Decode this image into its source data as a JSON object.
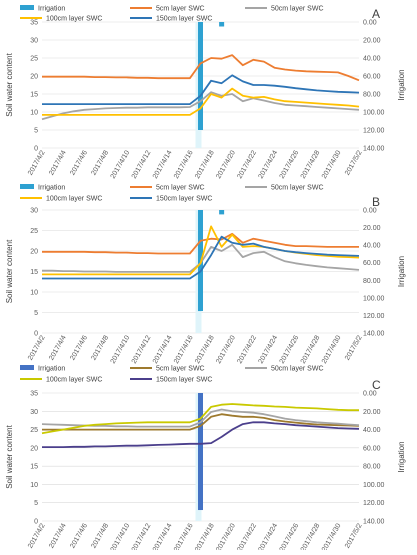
{
  "chart_data": [
    {
      "type": "line",
      "panel_label": "A",
      "ylabel": "Soil water content",
      "y2label": "Irrigation",
      "ylim": [
        0,
        35
      ],
      "y2lim": [
        0,
        140
      ],
      "y2_inverted": true,
      "yticks": [
        "0",
        "5",
        "10",
        "15",
        "20",
        "25",
        "30",
        "35"
      ],
      "y2ticks": [
        "0.00",
        "20.00",
        "40.00",
        "60.00",
        "80.00",
        "100.00",
        "120.00",
        "140.00"
      ],
      "x_dates": [
        "2017/4/2",
        "2017/4/3",
        "2017/4/4",
        "2017/4/5",
        "2017/4/6",
        "2017/4/7",
        "2017/4/8",
        "2017/4/9",
        "2017/4/10",
        "2017/4/11",
        "2017/4/12",
        "2017/4/13",
        "2017/4/14",
        "2017/4/15",
        "2017/4/16",
        "2017/4/17",
        "2017/4/18",
        "2017/4/19",
        "2017/4/20",
        "2017/4/21",
        "2017/4/22",
        "2017/4/23",
        "2017/4/24",
        "2017/4/25",
        "2017/4/26",
        "2017/4/27",
        "2017/4/28",
        "2017/4/29",
        "2017/4/30",
        "2017/5/1",
        "2017/5/2"
      ],
      "x_tick_labels": [
        "2017/4/2",
        "2017/4/4",
        "2017/4/6",
        "2017/4/8",
        "2017/4/10",
        "2017/4/12",
        "2017/4/14",
        "2017/4/16",
        "2017/4/18",
        "2017/4/20",
        "2017/4/22",
        "2017/4/24",
        "2017/4/26",
        "2017/4/28",
        "2017/4/30",
        "2017/5/2"
      ],
      "legend": [
        "Irrigation",
        "5cm layer SWC",
        "50cm layer SWC",
        "100cm layer SWC",
        "150cm layer SWC"
      ],
      "irrigation": [
        {
          "date": "2017/4/17",
          "value": 120
        },
        {
          "date": "2017/4/19",
          "value": 5
        }
      ],
      "series": [
        {
          "name": "5cm layer SWC",
          "color": "#ED7D31",
          "values": [
            19.8,
            19.8,
            19.8,
            19.8,
            19.8,
            19.7,
            19.7,
            19.6,
            19.6,
            19.5,
            19.5,
            19.4,
            19.4,
            19.4,
            19.4,
            23.5,
            25.0,
            24.8,
            25.8,
            23.0,
            24.5,
            24.0,
            22.3,
            21.8,
            21.5,
            21.3,
            21.2,
            21.1,
            21.0,
            20.0,
            18.8
          ]
        },
        {
          "name": "50cm layer SWC",
          "color": "#A5A5A5",
          "values": [
            8.0,
            8.8,
            9.6,
            10.2,
            10.6,
            10.8,
            11.0,
            11.1,
            11.2,
            11.2,
            11.3,
            11.3,
            11.3,
            11.3,
            11.4,
            13.0,
            15.5,
            14.5,
            15.0,
            13.0,
            13.8,
            13.2,
            12.5,
            12.0,
            11.8,
            11.6,
            11.4,
            11.2,
            11.0,
            10.8,
            10.6
          ]
        },
        {
          "name": "100cm layer SWC",
          "color": "#FFC000",
          "values": [
            9.2,
            9.2,
            9.2,
            9.2,
            9.2,
            9.2,
            9.2,
            9.2,
            9.2,
            9.2,
            9.2,
            9.2,
            9.2,
            9.2,
            9.2,
            11.0,
            15.0,
            14.0,
            16.5,
            14.5,
            14.0,
            14.2,
            13.5,
            13.0,
            12.8,
            12.6,
            12.4,
            12.2,
            12.0,
            11.8,
            11.5
          ]
        },
        {
          "name": "150cm layer SWC",
          "color": "#2E75B6",
          "values": [
            12.2,
            12.2,
            12.2,
            12.2,
            12.2,
            12.2,
            12.2,
            12.2,
            12.2,
            12.2,
            12.2,
            12.2,
            12.2,
            12.2,
            12.2,
            14.5,
            18.7,
            18.0,
            20.2,
            18.5,
            17.5,
            17.5,
            17.3,
            17.0,
            16.6,
            16.3,
            16.0,
            15.8,
            15.6,
            15.5,
            15.4
          ]
        }
      ]
    },
    {
      "type": "line",
      "panel_label": "B",
      "ylabel": "Soil water content",
      "y2label": "Irrigation",
      "ylim": [
        0,
        30
      ],
      "y2lim": [
        0,
        140
      ],
      "y2_inverted": true,
      "yticks": [
        "0",
        "5",
        "10",
        "15",
        "20",
        "25",
        "30"
      ],
      "y2ticks": [
        "0.00",
        "20.00",
        "40.00",
        "60.00",
        "80.00",
        "100.00",
        "120.00",
        "140.00"
      ],
      "x_dates": [
        "2017/4/2",
        "2017/4/3",
        "2017/4/4",
        "2017/4/5",
        "2017/4/6",
        "2017/4/7",
        "2017/4/8",
        "2017/4/9",
        "2017/4/10",
        "2017/4/11",
        "2017/4/12",
        "2017/4/13",
        "2017/4/14",
        "2017/4/15",
        "2017/4/16",
        "2017/4/17",
        "2017/4/18",
        "2017/4/19",
        "2017/4/20",
        "2017/4/21",
        "2017/4/22",
        "2017/4/23",
        "2017/4/24",
        "2017/4/25",
        "2017/4/26",
        "2017/4/27",
        "2017/4/28",
        "2017/4/29",
        "2017/4/30",
        "2017/5/1",
        "2017/5/2"
      ],
      "x_tick_labels": [
        "2017/4/2",
        "2017/4/4",
        "2017/4/6",
        "2017/4/8",
        "2017/4/10",
        "2017/4/12",
        "2017/4/14",
        "2017/4/16",
        "2017/4/18",
        "2017/4/20",
        "2017/4/22",
        "2017/4/24",
        "2017/4/26",
        "2017/4/28",
        "2017/4/30",
        "2017/5/2"
      ],
      "legend": [
        "Irrigation",
        "5cm layer SWC",
        "50cm layer SWC",
        "100cm layer SWC",
        "150cm layer SWC"
      ],
      "irrigation": [
        {
          "date": "2017/4/17",
          "value": 115
        },
        {
          "date": "2017/4/19",
          "value": 5
        }
      ],
      "series": [
        {
          "name": "5cm layer SWC",
          "color": "#ED7D31",
          "values": [
            19.8,
            19.8,
            19.8,
            19.8,
            19.8,
            19.7,
            19.7,
            19.6,
            19.6,
            19.5,
            19.5,
            19.4,
            19.4,
            19.4,
            19.4,
            22.5,
            23.0,
            22.8,
            24.2,
            22.0,
            23.0,
            22.5,
            22.0,
            21.5,
            21.2,
            21.2,
            21.1,
            21.0,
            21.0,
            21.0,
            21.0
          ]
        },
        {
          "name": "50cm layer SWC",
          "color": "#A5A5A5",
          "values": [
            15.2,
            15.2,
            15.1,
            15.1,
            15.0,
            15.0,
            15.0,
            14.9,
            14.9,
            14.9,
            14.9,
            14.9,
            14.9,
            14.9,
            14.9,
            17.0,
            21.0,
            20.0,
            21.5,
            18.5,
            19.5,
            19.8,
            18.5,
            17.5,
            17.0,
            16.6,
            16.3,
            16.0,
            15.8,
            15.6,
            15.4
          ]
        },
        {
          "name": "100cm layer SWC",
          "color": "#FFC000",
          "values": [
            14.3,
            14.3,
            14.3,
            14.3,
            14.3,
            14.3,
            14.3,
            14.3,
            14.3,
            14.3,
            14.3,
            14.3,
            14.3,
            14.3,
            14.3,
            17.0,
            26.0,
            21.0,
            24.0,
            21.0,
            21.2,
            21.0,
            20.5,
            20.0,
            19.6,
            19.3,
            19.0,
            18.8,
            18.6,
            18.5,
            18.4
          ]
        },
        {
          "name": "150cm layer SWC",
          "color": "#2E75B6",
          "values": [
            13.3,
            13.3,
            13.3,
            13.3,
            13.3,
            13.3,
            13.3,
            13.3,
            13.3,
            13.3,
            13.3,
            13.3,
            13.3,
            13.3,
            13.3,
            15.0,
            19.0,
            23.5,
            22.0,
            21.5,
            21.8,
            21.0,
            20.5,
            20.0,
            19.7,
            19.5,
            19.3,
            19.1,
            19.0,
            18.9,
            18.8
          ]
        }
      ]
    },
    {
      "type": "line",
      "panel_label": "C",
      "ylabel": "Soil water content",
      "y2label": "Irrigation",
      "ylim": [
        0,
        35
      ],
      "y2lim": [
        0,
        140
      ],
      "y2_inverted": true,
      "yticks": [
        "0",
        "5",
        "10",
        "15",
        "20",
        "25",
        "30",
        "35"
      ],
      "y2ticks": [
        "0.00",
        "20.00",
        "40.00",
        "60.00",
        "80.00",
        "100.00",
        "120.00",
        "140.00"
      ],
      "x_dates": [
        "2017/4/2",
        "2017/4/3",
        "2017/4/4",
        "2017/4/5",
        "2017/4/6",
        "2017/4/7",
        "2017/4/8",
        "2017/4/9",
        "2017/4/10",
        "2017/4/11",
        "2017/4/12",
        "2017/4/13",
        "2017/4/14",
        "2017/4/15",
        "2017/4/16",
        "2017/4/17",
        "2017/4/18",
        "2017/4/19",
        "2017/4/20",
        "2017/4/21",
        "2017/4/22",
        "2017/4/23",
        "2017/4/24",
        "2017/4/25",
        "2017/4/26",
        "2017/4/27",
        "2017/4/28",
        "2017/4/29",
        "2017/4/30",
        "2017/5/1",
        "2017/5/2"
      ],
      "x_tick_labels": [
        "2017/4/2",
        "2017/4/4",
        "2017/4/6",
        "2017/4/8",
        "2017/4/10",
        "2017/4/12",
        "2017/4/14",
        "2017/4/16",
        "2017/4/18",
        "2017/4/20",
        "2017/4/22",
        "2017/4/24",
        "2017/4/26",
        "2017/4/28",
        "2017/4/30",
        "2017/5/2"
      ],
      "legend": [
        "Irrigation",
        "5cm layer SWC",
        "50cm layer SWC",
        "100cm layer SWC",
        "150cm layer SWC"
      ],
      "irrigation": [
        {
          "date": "2017/4/17",
          "value": 128
        }
      ],
      "series": [
        {
          "name": "5cm layer SWC",
          "color": "#9E7A2E",
          "values": [
            25.0,
            25.0,
            25.0,
            25.0,
            25.0,
            25.0,
            25.0,
            25.0,
            25.0,
            25.0,
            25.0,
            25.0,
            25.0,
            25.0,
            25.0,
            26.0,
            28.5,
            29.2,
            28.8,
            28.5,
            28.5,
            28.2,
            27.6,
            27.2,
            26.9,
            26.6,
            26.4,
            26.3,
            26.2,
            26.1,
            26.0
          ]
        },
        {
          "name": "50cm layer SWC",
          "color": "#A5A5A5",
          "values": [
            26.5,
            26.4,
            26.3,
            26.2,
            26.1,
            26.0,
            26.0,
            25.9,
            25.9,
            25.8,
            25.8,
            25.8,
            25.8,
            25.8,
            25.8,
            27.0,
            29.8,
            30.5,
            30.0,
            29.8,
            29.6,
            29.2,
            28.6,
            28.0,
            27.6,
            27.3,
            27.0,
            26.8,
            26.6,
            26.4,
            26.2
          ]
        },
        {
          "name": "100cm layer SWC",
          "color": "#C9C900",
          "values": [
            24.0,
            24.5,
            25.0,
            25.5,
            26.0,
            26.3,
            26.5,
            26.7,
            26.8,
            26.9,
            27.0,
            27.0,
            27.0,
            27.0,
            27.0,
            28.0,
            31.2,
            31.8,
            32.0,
            31.8,
            31.6,
            31.5,
            31.3,
            31.2,
            31.0,
            30.9,
            30.8,
            30.6,
            30.4,
            30.3,
            30.3
          ]
        },
        {
          "name": "150cm layer SWC",
          "color": "#4B3F8C",
          "values": [
            20.2,
            20.2,
            20.2,
            20.3,
            20.3,
            20.4,
            20.4,
            20.5,
            20.6,
            20.6,
            20.7,
            20.8,
            20.9,
            21.0,
            21.1,
            21.1,
            21.3,
            23.0,
            25.0,
            26.5,
            27.0,
            27.0,
            26.7,
            26.5,
            26.2,
            26.0,
            25.8,
            25.6,
            25.4,
            25.3,
            25.2
          ]
        }
      ]
    }
  ]
}
